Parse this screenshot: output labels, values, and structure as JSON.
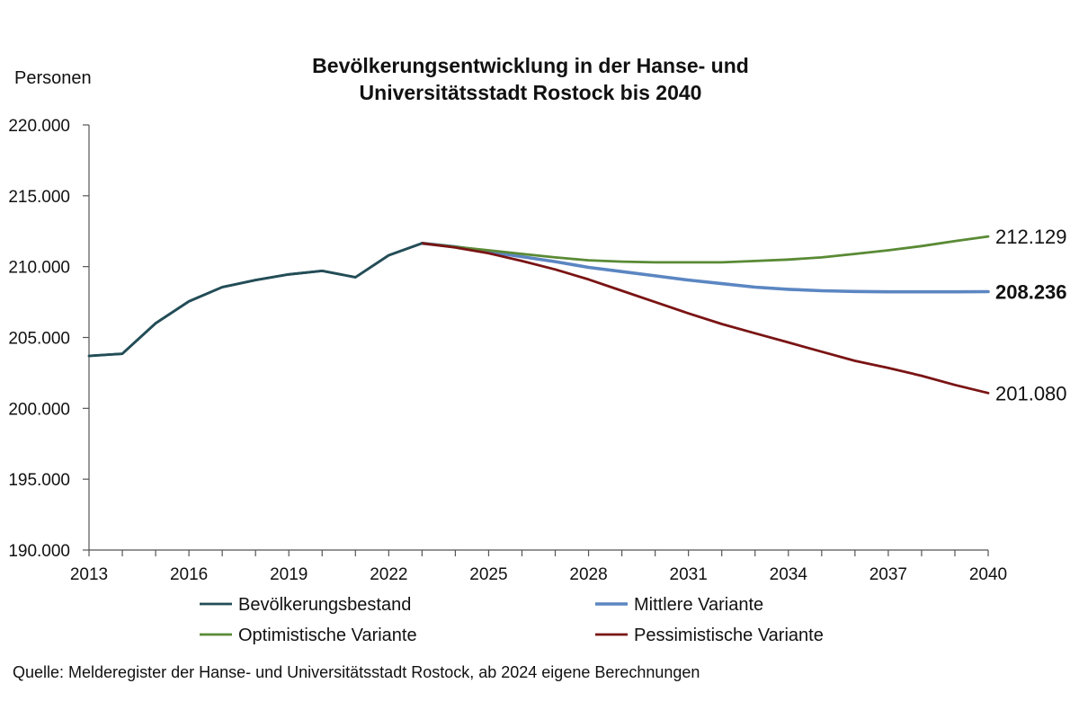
{
  "chart_data": {
    "type": "line",
    "title_line1": "Bevölkerungsentwicklung in der Hanse- und",
    "title_line2": "Universitätsstadt Rostock bis 2040",
    "ylabel": "Personen",
    "xlabel": "",
    "ylim": [
      190000,
      220000
    ],
    "yticks": [
      "190.000",
      "195.000",
      "200.000",
      "205.000",
      "210.000",
      "215.000",
      "220.000"
    ],
    "xlim": [
      2013,
      2040
    ],
    "xticks": [
      "2013",
      "2016",
      "2019",
      "2022",
      "2025",
      "2028",
      "2031",
      "2034",
      "2037",
      "2040"
    ],
    "grid": false,
    "legend_position": "bottom",
    "series": [
      {
        "name": "Bevölkerungsbestand",
        "color": "#234d57",
        "x": [
          2013,
          2014,
          2015,
          2016,
          2017,
          2018,
          2019,
          2020,
          2021,
          2022,
          2023
        ],
        "values": [
          203700,
          203850,
          206000,
          207550,
          208550,
          209050,
          209450,
          209700,
          209250,
          210800,
          211650
        ]
      },
      {
        "name": "Mittlere Variante",
        "color": "#5b86c2",
        "x": [
          2023,
          2024,
          2025,
          2026,
          2027,
          2028,
          2029,
          2030,
          2031,
          2032,
          2033,
          2034,
          2035,
          2036,
          2037,
          2038,
          2039,
          2040
        ],
        "values": [
          211650,
          211400,
          211050,
          210700,
          210350,
          209950,
          209650,
          209350,
          209050,
          208800,
          208550,
          208400,
          208300,
          208250,
          208220,
          208220,
          208220,
          208236
        ]
      },
      {
        "name": "Optimistische Variante",
        "color": "#5a8a35",
        "x": [
          2023,
          2024,
          2025,
          2026,
          2027,
          2028,
          2029,
          2030,
          2031,
          2032,
          2033,
          2034,
          2035,
          2036,
          2037,
          2038,
          2039,
          2040
        ],
        "values": [
          211650,
          211400,
          211150,
          210900,
          210650,
          210450,
          210350,
          210300,
          210300,
          210300,
          210400,
          210500,
          210650,
          210900,
          211150,
          211450,
          211800,
          212129
        ]
      },
      {
        "name": "Pessimistische Variante",
        "color": "#7a1414",
        "x": [
          2023,
          2024,
          2025,
          2026,
          2027,
          2028,
          2029,
          2030,
          2031,
          2032,
          2033,
          2034,
          2035,
          2036,
          2037,
          2038,
          2039,
          2040
        ],
        "values": [
          211650,
          211350,
          210950,
          210400,
          209800,
          209100,
          208300,
          207500,
          206700,
          205950,
          205300,
          204650,
          204000,
          203350,
          202850,
          202300,
          201650,
          201080
        ]
      }
    ],
    "end_labels": [
      {
        "series": "Optimistische Variante",
        "text": "212.129",
        "color": "#111111",
        "bold": false
      },
      {
        "series": "Mittlere Variante",
        "text": "208.236",
        "color": "#8eaadb",
        "bold": true
      },
      {
        "series": "Pessimistische Variante",
        "text": "201.080",
        "color": "#111111",
        "bold": false
      }
    ]
  },
  "source": "Quelle: Melderegister der Hanse- und Universitätsstadt Rostock, ab 2024 eigene Berechnungen"
}
